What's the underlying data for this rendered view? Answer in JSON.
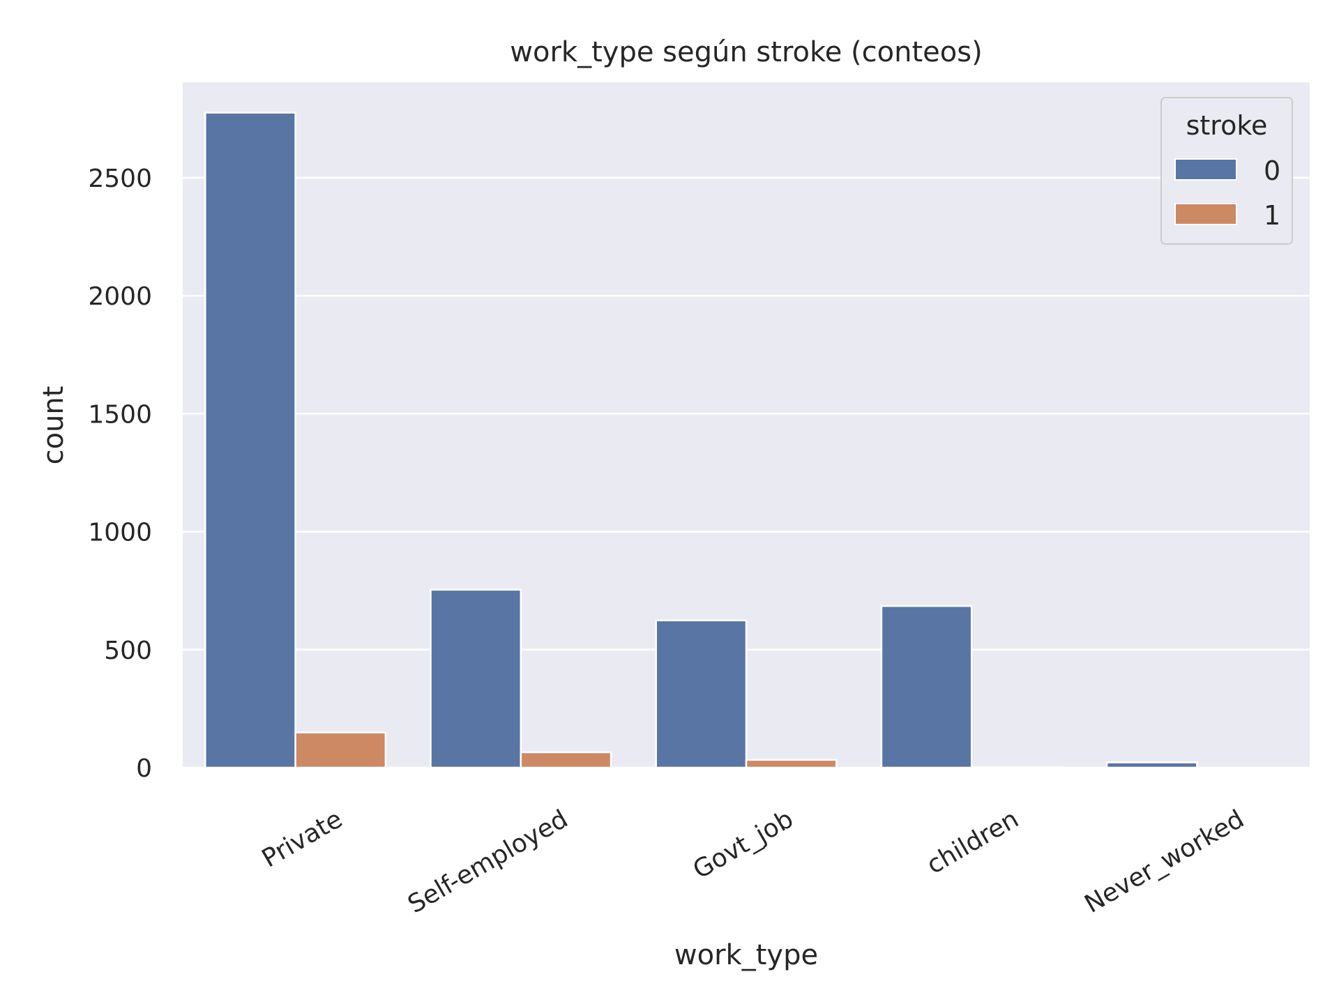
{
  "chart_data": {
    "type": "bar",
    "title": "work_type según stroke (conteos)",
    "xlabel": "work_type",
    "ylabel": "count",
    "categories": [
      "Private",
      "Self-employed",
      "Govt_job",
      "children",
      "Never_worked"
    ],
    "series": [
      {
        "name": "0",
        "values": [
          2776,
          754,
          624,
          685,
          22
        ]
      },
      {
        "name": "1",
        "values": [
          149,
          65,
          33,
          2,
          0
        ]
      }
    ],
    "ylim": [
      0,
      2900
    ],
    "yticks": [
      0,
      500,
      1000,
      1500,
      2000,
      2500
    ],
    "x_tick_rotation_deg": -30,
    "grid": true,
    "legend": {
      "title": "stroke",
      "position": "top-right"
    },
    "colors": {
      "series0": "#5875a4",
      "series1": "#cc8963",
      "plot_bg": "#eaeaf2",
      "grid": "#ffffff"
    }
  }
}
